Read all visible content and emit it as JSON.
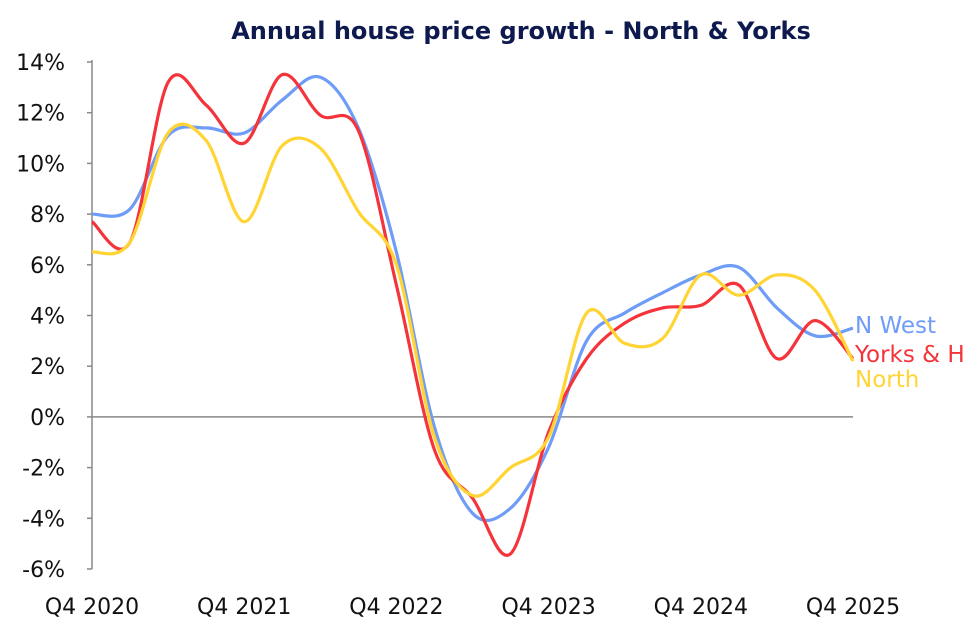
{
  "chart_data": {
    "type": "line",
    "title": "Annual house price growth - North & Yorks",
    "xlabel": "",
    "ylabel": "",
    "categories": [
      "Q4 2020",
      "Q1 2021",
      "Q2 2021",
      "Q3 2021",
      "Q4 2021",
      "Q1 2022",
      "Q2 2022",
      "Q3 2022",
      "Q4 2022",
      "Q1 2023",
      "Q2 2023",
      "Q3 2023",
      "Q4 2023",
      "Q1 2024",
      "Q2 2024",
      "Q3 2024",
      "Q4 2024",
      "Q1 2025",
      "Q2 2025",
      "Q3 2025",
      "Q4 2025"
    ],
    "x_tick_labels": [
      "Q4 2020",
      "Q4 2021",
      "Q4 2022",
      "Q4 2023",
      "Q4 2024",
      "Q4 2025"
    ],
    "y_tick_labels": [
      "14%",
      "12%",
      "10%",
      "8%",
      "6%",
      "4%",
      "2%",
      "0%",
      "-2%",
      "-4%",
      "-6%"
    ],
    "ylim": [
      -6,
      14
    ],
    "y_unit": "%",
    "grid": false,
    "legend": "direct labels at line ends (right)",
    "series": [
      {
        "name": "N West",
        "color": "#6f9cf7",
        "values": [
          8.0,
          8.2,
          11.1,
          11.4,
          11.2,
          12.5,
          13.4,
          11.4,
          6.5,
          -0.4,
          -3.8,
          -3.6,
          -1.2,
          3.0,
          4.1,
          4.9,
          5.6,
          5.9,
          4.3,
          3.2,
          3.5
        ]
      },
      {
        "name": "Yorks & H",
        "color": "#f4333b",
        "values": [
          7.7,
          6.9,
          13.2,
          12.3,
          10.8,
          13.5,
          11.9,
          11.3,
          5.2,
          -1.3,
          -3.2,
          -5.4,
          -0.6,
          2.3,
          3.7,
          4.3,
          4.4,
          5.2,
          2.3,
          3.8,
          2.3
        ]
      },
      {
        "name": "North",
        "color": "#ffd433",
        "values": [
          6.5,
          6.9,
          11.2,
          10.9,
          7.7,
          10.7,
          10.6,
          8.1,
          6.0,
          -0.8,
          -3.1,
          -2.0,
          -0.8,
          4.1,
          2.9,
          3.1,
          5.6,
          4.8,
          5.6,
          5.0,
          2.2
        ]
      }
    ]
  }
}
